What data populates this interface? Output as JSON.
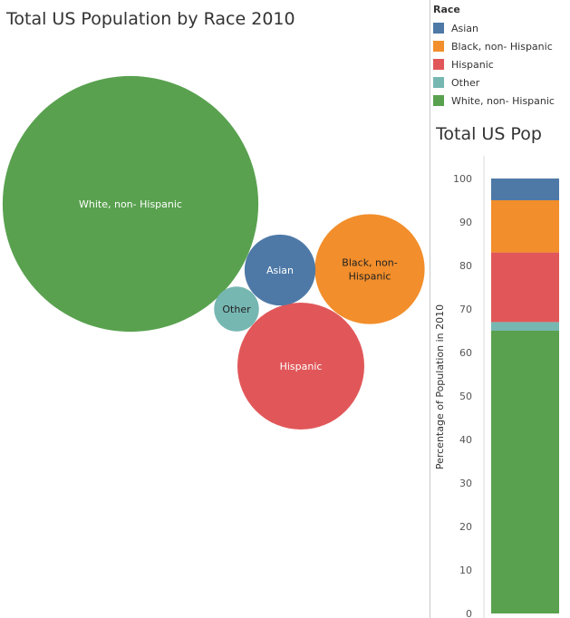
{
  "bubble_title": "Total US Population by Race 2010",
  "bar_title": "Total US Pop",
  "legend": {
    "title": "Race",
    "items": [
      {
        "label": "Asian",
        "color": "#4e79a7"
      },
      {
        "label": "Black, non- Hispanic",
        "color": "#f28e2b"
      },
      {
        "label": "Hispanic",
        "color": "#e15759"
      },
      {
        "label": "Other",
        "color": "#76b7b2"
      },
      {
        "label": "White, non- Hispanic",
        "color": "#59a14f"
      }
    ]
  },
  "chart_data": [
    {
      "type": "bubble",
      "title": "Total US Population by Race 2010",
      "series": [
        {
          "name": "White, non- Hispanic",
          "label": "White, non- Hispanic",
          "value": 65,
          "color": "#59a14f",
          "text_color": "#ffffff"
        },
        {
          "name": "Black, non- Hispanic",
          "label": "Black, non- Hispanic",
          "value": 12,
          "color": "#f28e2b",
          "text_color": "#222222"
        },
        {
          "name": "Hispanic",
          "label": "Hispanic",
          "value": 16,
          "color": "#e15759",
          "text_color": "#ffffff"
        },
        {
          "name": "Asian",
          "label": "Asian",
          "value": 5,
          "color": "#4e79a7",
          "text_color": "#ffffff"
        },
        {
          "name": "Other",
          "label": "Other",
          "value": 2,
          "color": "#76b7b2",
          "text_color": "#222222"
        }
      ]
    },
    {
      "type": "bar",
      "stacked": true,
      "title": "Total US Pop",
      "ylabel": "Percentage of Population in 2010",
      "ylim": [
        0,
        100
      ],
      "yticks": [
        0,
        10,
        20,
        30,
        40,
        50,
        60,
        70,
        80,
        90,
        100
      ],
      "categories": [
        ""
      ],
      "series": [
        {
          "name": "White, non- Hispanic",
          "values": [
            65
          ],
          "color": "#59a14f"
        },
        {
          "name": "Other",
          "values": [
            2
          ],
          "color": "#76b7b2"
        },
        {
          "name": "Hispanic",
          "values": [
            16
          ],
          "color": "#e15759"
        },
        {
          "name": "Black, non- Hispanic",
          "values": [
            12
          ],
          "color": "#f28e2b"
        },
        {
          "name": "Asian",
          "values": [
            5
          ],
          "color": "#4e79a7"
        }
      ]
    }
  ]
}
